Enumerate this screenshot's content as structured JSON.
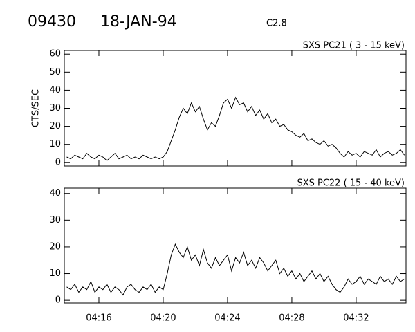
{
  "header": {
    "id": "09430",
    "date": "18-JAN-94",
    "class": "C2.8"
  },
  "chart_data": [
    {
      "type": "line",
      "subtitle": "SXS PC21  (  3 - 15 keV)",
      "ylabel": "CTS/SEC",
      "x": [
        14,
        14.25,
        14.5,
        14.75,
        15,
        15.25,
        15.5,
        15.75,
        16,
        16.25,
        16.5,
        16.75,
        17,
        17.25,
        17.5,
        17.75,
        18,
        18.25,
        18.5,
        18.75,
        19,
        19.25,
        19.5,
        19.75,
        20,
        20.25,
        20.5,
        20.75,
        21,
        21.25,
        21.5,
        21.75,
        22,
        22.25,
        22.5,
        22.75,
        23,
        23.25,
        23.5,
        23.75,
        24,
        24.25,
        24.5,
        24.75,
        25,
        25.25,
        25.5,
        25.75,
        26,
        26.25,
        26.5,
        26.75,
        27,
        27.25,
        27.5,
        27.75,
        28,
        28.25,
        28.5,
        28.75,
        29,
        29.25,
        29.5,
        29.75,
        30,
        30.25,
        30.5,
        30.75,
        31,
        31.25,
        31.5,
        31.75,
        32,
        32.25,
        32.5,
        32.75,
        33,
        33.25,
        33.5,
        33.75,
        34,
        34.25,
        34.5,
        34.75,
        35
      ],
      "values": [
        3,
        2,
        4,
        3,
        2,
        5,
        3,
        2,
        4,
        3,
        1,
        3,
        5,
        2,
        3,
        4,
        2,
        3,
        2,
        4,
        3,
        2,
        3,
        2,
        3,
        6,
        12,
        18,
        25,
        30,
        27,
        33,
        28,
        31,
        24,
        18,
        22,
        20,
        26,
        33,
        35,
        30,
        36,
        32,
        33,
        28,
        31,
        26,
        29,
        24,
        27,
        22,
        24,
        20,
        21,
        18,
        17,
        15,
        14,
        16,
        12,
        13,
        11,
        10,
        12,
        9,
        10,
        8,
        5,
        3,
        6,
        4,
        5,
        3,
        6,
        5,
        4,
        7,
        3,
        5,
        6,
        4,
        5,
        7,
        4
      ],
      "color": "#000000",
      "xlim": [
        13.85,
        35.1
      ],
      "ylim": [
        -2,
        62
      ],
      "xticks": [
        16,
        20,
        24,
        28,
        32
      ],
      "yticks": [
        0,
        10,
        20,
        30,
        40,
        50,
        60
      ]
    },
    {
      "type": "line",
      "subtitle": "SXS PC22  ( 15 - 40 keV)",
      "x": [
        14,
        14.25,
        14.5,
        14.75,
        15,
        15.25,
        15.5,
        15.75,
        16,
        16.25,
        16.5,
        16.75,
        17,
        17.25,
        17.5,
        17.75,
        18,
        18.25,
        18.5,
        18.75,
        19,
        19.25,
        19.5,
        19.75,
        20,
        20.25,
        20.5,
        20.75,
        21,
        21.25,
        21.5,
        21.75,
        22,
        22.25,
        22.5,
        22.75,
        23,
        23.25,
        23.5,
        23.75,
        24,
        24.25,
        24.5,
        24.75,
        25,
        25.25,
        25.5,
        25.75,
        26,
        26.25,
        26.5,
        26.75,
        27,
        27.25,
        27.5,
        27.75,
        28,
        28.25,
        28.5,
        28.75,
        29,
        29.25,
        29.5,
        29.75,
        30,
        30.25,
        30.5,
        30.75,
        31,
        31.25,
        31.5,
        31.75,
        32,
        32.25,
        32.5,
        32.75,
        33,
        33.25,
        33.5,
        33.75,
        34,
        34.25,
        34.5,
        34.75,
        35
      ],
      "values": [
        5,
        4,
        6,
        3,
        5,
        4,
        7,
        3,
        5,
        4,
        6,
        3,
        5,
        4,
        2,
        5,
        6,
        4,
        3,
        5,
        4,
        6,
        3,
        5,
        4,
        10,
        17,
        21,
        18,
        16,
        20,
        15,
        17,
        13,
        19,
        14,
        12,
        16,
        13,
        15,
        17,
        11,
        16,
        14,
        18,
        13,
        15,
        12,
        16,
        14,
        11,
        13,
        15,
        10,
        12,
        9,
        11,
        8,
        10,
        7,
        9,
        11,
        8,
        10,
        7,
        9,
        6,
        4,
        3,
        5,
        8,
        6,
        7,
        9,
        6,
        8,
        7,
        6,
        9,
        7,
        8,
        6,
        9,
        7,
        8
      ],
      "color": "#000000",
      "xlim": [
        13.85,
        35.1
      ],
      "ylim": [
        -1,
        42
      ],
      "xticks": [
        {
          "value": 16,
          "label": "04:16"
        },
        {
          "value": 20,
          "label": "04:20"
        },
        {
          "value": 24,
          "label": "04:24"
        },
        {
          "value": 28,
          "label": "04:28"
        },
        {
          "value": 32,
          "label": "04:32"
        }
      ],
      "yticks": [
        0,
        10,
        20,
        30,
        40
      ]
    }
  ]
}
